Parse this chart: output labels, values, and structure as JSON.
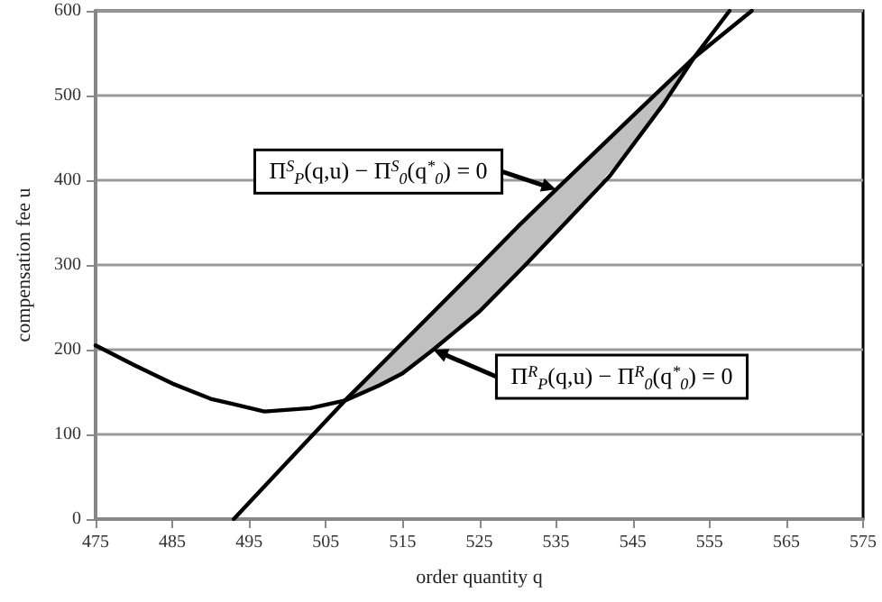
{
  "chart_data": {
    "type": "line",
    "xlabel": "order quantity q",
    "ylabel": "compensation fee u",
    "xlim": [
      475,
      575
    ],
    "xticks": [
      475,
      485,
      495,
      505,
      515,
      525,
      535,
      545,
      555,
      565,
      575
    ],
    "ylim": [
      0,
      600
    ],
    "yticks": [
      0,
      100,
      200,
      300,
      400,
      500,
      600
    ],
    "grid": "y",
    "marker": "none",
    "line_style": "solid",
    "series": [
      {
        "color": "#000000",
        "x": [
          493,
          507.5,
          515,
          525,
          530,
          535,
          545,
          553,
          560.5
        ],
        "values": [
          0,
          140,
          208,
          299,
          345,
          389,
          476,
          545,
          600
        ],
        "lower": [
          null,
          140,
          172,
          245,
          291,
          338,
          441,
          545,
          null
        ],
        "upper": [
          null,
          140,
          208,
          299,
          345,
          389,
          476,
          545,
          null
        ]
      },
      {
        "color": "#000000",
        "x": [
          475,
          480,
          485,
          490,
          497,
          503,
          507.5,
          512,
          515,
          519,
          525,
          531,
          535,
          542,
          549,
          553,
          557.6
        ],
        "values": [
          205,
          182,
          160,
          142,
          127,
          131,
          140,
          158,
          172,
          200,
          245,
          300,
          338,
          405,
          490,
          545,
          600
        ]
      }
    ],
    "annotations": [
      "Π$^{S}$$_{P}$(q,u) − Π$^{S}$$_{0}$(q$^{*}$$_{0}$) = 0",
      "Π$^{R}$$_{P}$(q,u) − Π$^{R}$$_{0}$(q$^{*}$$_{0}$) = 0"
    ]
  }
}
